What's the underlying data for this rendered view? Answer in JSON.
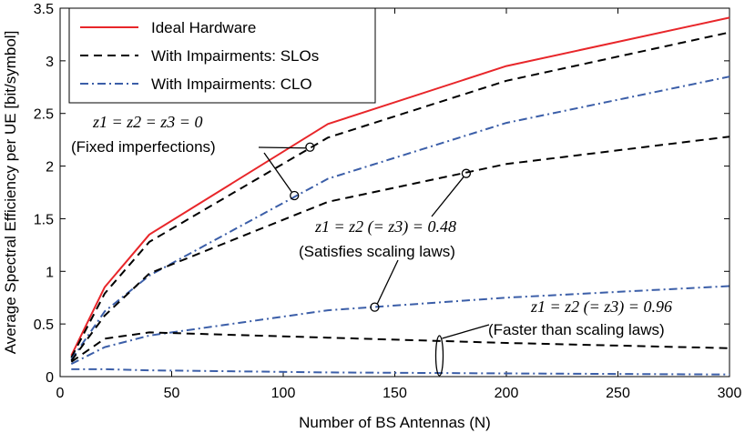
{
  "chart_data": {
    "type": "line",
    "xlabel": "Number of BS Antennas (N)",
    "ylabel": "Average Spectral Efficiency per UE [bit/symbol]",
    "xlim": [
      0,
      300
    ],
    "ylim": [
      0,
      3.5
    ],
    "xticks": [
      0,
      50,
      100,
      150,
      200,
      250,
      300
    ],
    "yticks": [
      0,
      0.5,
      1,
      1.5,
      2,
      2.5,
      3,
      3.5
    ],
    "grid": false,
    "legend_position": "top-left",
    "legend": [
      "Ideal Hardware",
      "With Impairments: SLOs",
      "With Impairments: CLO"
    ],
    "series": [
      {
        "name": "Ideal Hardware",
        "style": "solid",
        "color": "#e8262a",
        "x": [
          5,
          20,
          40,
          120,
          200,
          300
        ],
        "y": [
          0.2,
          0.85,
          1.35,
          2.4,
          2.95,
          3.41
        ]
      },
      {
        "style": "dashed",
        "color": "#000000",
        "x": [
          5,
          20,
          40,
          120,
          200,
          300
        ],
        "y": [
          0.18,
          0.79,
          1.28,
          2.27,
          2.81,
          3.27
        ]
      },
      {
        "style": "dashdot",
        "color": "#3b5ea8",
        "x": [
          5,
          20,
          40,
          120,
          200,
          300
        ],
        "y": [
          0.16,
          0.62,
          0.96,
          1.88,
          2.41,
          2.85
        ]
      },
      {
        "style": "dashed",
        "color": "#000000",
        "x": [
          5,
          20,
          40,
          120,
          200,
          300
        ],
        "y": [
          0.15,
          0.58,
          0.98,
          1.66,
          2.02,
          2.28
        ]
      },
      {
        "style": "dashdot",
        "color": "#3b5ea8",
        "x": [
          5,
          20,
          40,
          120,
          200,
          300
        ],
        "y": [
          0.12,
          0.28,
          0.39,
          0.63,
          0.75,
          0.86
        ]
      },
      {
        "style": "dashed",
        "color": "#000000",
        "x": [
          5,
          20,
          40,
          120,
          200,
          300
        ],
        "y": [
          0.14,
          0.36,
          0.42,
          0.37,
          0.32,
          0.27
        ]
      },
      {
        "style": "dashdot",
        "color": "#3b5ea8",
        "x": [
          5,
          20,
          40,
          120,
          200,
          300
        ],
        "y": [
          0.07,
          0.07,
          0.06,
          0.04,
          0.03,
          0.02
        ]
      }
    ],
    "annotations": [
      {
        "math": "z1 = z2 = z3 = 0",
        "text": "(Fixed imperfections)",
        "markers": [
          {
            "x": 112,
            "y": 2.18
          },
          {
            "x": 105,
            "y": 1.72
          }
        ]
      },
      {
        "math": "z1 = z2 (= z3) = 0.48",
        "text": "(Satisfies scaling laws)",
        "markers": [
          {
            "x": 182,
            "y": 1.93
          },
          {
            "x": 141,
            "y": 0.66
          }
        ]
      },
      {
        "math": "z1 = z2 (= z3) = 0.96",
        "text": "(Faster than scaling laws)",
        "markers": [
          {
            "x": 170,
            "y": 0.0
          }
        ]
      }
    ]
  }
}
